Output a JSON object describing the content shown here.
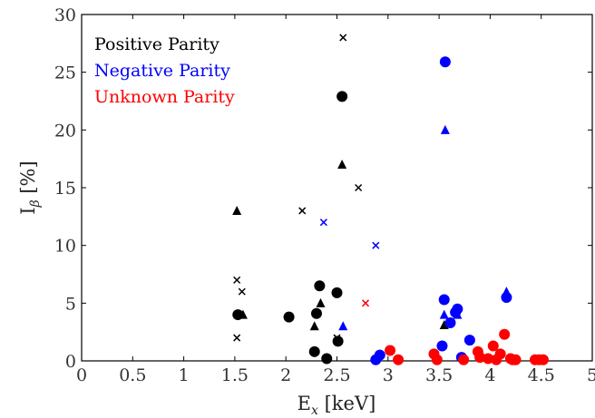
{
  "chart_data": {
    "type": "scatter",
    "title": "",
    "xlabel_main": "E",
    "xlabel_sub": "x",
    "xlabel_unit": " [keV]",
    "ylabel_main": "I",
    "ylabel_sub": "β",
    "ylabel_unit": " [%]",
    "xlim": [
      0,
      5
    ],
    "ylim": [
      0,
      30
    ],
    "xticks": [
      "0",
      "0.5",
      "1",
      "1.5",
      "2",
      "2.5",
      "3",
      "3.5",
      "4",
      "4.5",
      "5"
    ],
    "yticks": [
      "0",
      "5",
      "10",
      "15",
      "20",
      "25",
      "30"
    ],
    "grid": false,
    "legend_position": "top-left",
    "legend": [
      {
        "label": "Positive Parity",
        "color": "#000000"
      },
      {
        "label": "Negative Parity",
        "color": "#0000ff"
      },
      {
        "label": "Unknown Parity",
        "color": "#ff0000"
      }
    ],
    "series": [
      {
        "name": "Positive Parity",
        "color": "#000000",
        "circle": [
          [
            1.53,
            4.0
          ],
          [
            2.03,
            3.8
          ],
          [
            2.28,
            0.8
          ],
          [
            2.3,
            4.1
          ],
          [
            2.33,
            6.5
          ],
          [
            2.4,
            0.2
          ],
          [
            2.5,
            5.9
          ],
          [
            2.51,
            1.7
          ],
          [
            2.55,
            22.9
          ]
        ],
        "triangle": [
          [
            1.52,
            13.0
          ],
          [
            1.58,
            4.0
          ],
          [
            2.28,
            3.0
          ],
          [
            2.34,
            5.0
          ],
          [
            2.55,
            17.0
          ],
          [
            3.55,
            3.1
          ]
        ],
        "cross": [
          [
            1.52,
            7.0
          ],
          [
            1.52,
            2.0
          ],
          [
            1.57,
            6.0
          ],
          [
            2.16,
            13.0
          ],
          [
            2.5,
            2.0
          ],
          [
            2.56,
            28.0
          ],
          [
            2.71,
            15.0
          ]
        ]
      },
      {
        "name": "Negative Parity",
        "color": "#0000ff",
        "circle": [
          [
            2.88,
            0.1
          ],
          [
            2.92,
            0.5
          ],
          [
            3.53,
            1.3
          ],
          [
            3.55,
            5.3
          ],
          [
            3.56,
            25.9
          ],
          [
            3.61,
            3.3
          ],
          [
            3.66,
            4.2
          ],
          [
            3.68,
            4.5
          ],
          [
            3.72,
            0.3
          ],
          [
            3.8,
            1.8
          ],
          [
            4.16,
            5.5
          ]
        ],
        "triangle": [
          [
            2.56,
            3.0
          ],
          [
            3.55,
            4.0
          ],
          [
            3.56,
            20.0
          ],
          [
            3.68,
            4.0
          ],
          [
            4.16,
            6.0
          ]
        ],
        "cross": [
          [
            2.37,
            12.0
          ],
          [
            2.88,
            10.0
          ]
        ]
      },
      {
        "name": "Unknown Parity",
        "color": "#ff0000",
        "circle": [
          [
            3.02,
            0.9
          ],
          [
            3.1,
            0.1
          ],
          [
            3.45,
            0.6
          ],
          [
            3.48,
            0.1
          ],
          [
            3.74,
            0.1
          ],
          [
            3.88,
            0.8
          ],
          [
            3.9,
            0.3
          ],
          [
            3.98,
            0.2
          ],
          [
            4.03,
            1.3
          ],
          [
            4.06,
            0.1
          ],
          [
            4.1,
            0.6
          ],
          [
            4.14,
            2.3
          ],
          [
            4.2,
            0.2
          ],
          [
            4.22,
            0.1
          ],
          [
            4.25,
            0.1
          ],
          [
            4.44,
            0.1
          ],
          [
            4.48,
            0.1
          ],
          [
            4.52,
            0.1
          ]
        ],
        "triangle": [],
        "cross": [
          [
            2.78,
            5.0
          ]
        ]
      }
    ]
  }
}
